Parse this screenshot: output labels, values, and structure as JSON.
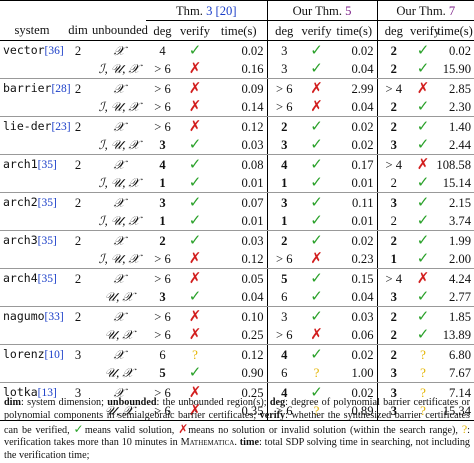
{
  "header": {
    "thm3_label": "Thm. ",
    "thm3_num": "3",
    "thm3_ref": "[20]",
    "our5_label": "Our Thm. ",
    "our5_num": "5",
    "our7_label": "Our Thm. ",
    "our7_num": "7",
    "col_system": "system",
    "col_dim": "dim",
    "col_unbounded": "unbounded",
    "col_deg": "deg",
    "col_verify": "verify",
    "col_time": "time(s)"
  },
  "rows": [
    {
      "sys": "vector",
      "ref": "[36]",
      "dim": "2",
      "unb": "𝒳",
      "a": [
        "4",
        "ok",
        "0.02"
      ],
      "b": [
        "3",
        "ok",
        "0.02"
      ],
      "c": [
        "2",
        "ok",
        "0.02"
      ],
      "bold": [
        false,
        false,
        true
      ]
    },
    {
      "sys": "",
      "ref": "",
      "dim": "",
      "unb": "ℐ, 𝒰, 𝒳",
      "a": [
        "> 6",
        "no",
        "0.16"
      ],
      "b": [
        "3",
        "ok",
        "0.04"
      ],
      "c": [
        "2",
        "ok",
        "15.90"
      ],
      "bold": [
        false,
        false,
        true
      ],
      "end": true
    },
    {
      "sys": "barrier",
      "ref": "[28]",
      "dim": "2",
      "unb": "𝒳",
      "a": [
        "> 6",
        "no",
        "0.09"
      ],
      "b": [
        "> 6",
        "no",
        "2.99"
      ],
      "c": [
        "> 4",
        "no",
        "2.85"
      ],
      "bold": [
        false,
        false,
        false
      ]
    },
    {
      "sys": "",
      "ref": "",
      "dim": "",
      "unb": "ℐ, 𝒰, 𝒳",
      "a": [
        "> 6",
        "no",
        "0.14"
      ],
      "b": [
        "> 6",
        "no",
        "0.04"
      ],
      "c": [
        "2",
        "ok",
        "2.30"
      ],
      "bold": [
        false,
        false,
        true
      ],
      "end": true
    },
    {
      "sys": "lie-der",
      "ref": "[23]",
      "dim": "2",
      "unb": "𝒳",
      "a": [
        "> 6",
        "no",
        "0.12"
      ],
      "b": [
        "2",
        "ok",
        "0.02"
      ],
      "c": [
        "2",
        "ok",
        "1.40"
      ],
      "bold": [
        false,
        true,
        true
      ]
    },
    {
      "sys": "",
      "ref": "",
      "dim": "",
      "unb": "ℐ, 𝒰, 𝒳",
      "a": [
        "3",
        "ok",
        "0.03"
      ],
      "b": [
        "3",
        "ok",
        "0.02"
      ],
      "c": [
        "3",
        "ok",
        "2.44"
      ],
      "bold": [
        true,
        true,
        true
      ],
      "end": true
    },
    {
      "sys": "arch1",
      "ref": "[35]",
      "dim": "2",
      "unb": "𝒳",
      "a": [
        "4",
        "ok",
        "0.08"
      ],
      "b": [
        "4",
        "ok",
        "0.17"
      ],
      "c": [
        "> 4",
        "no",
        "108.58"
      ],
      "bold": [
        true,
        true,
        false
      ]
    },
    {
      "sys": "",
      "ref": "",
      "dim": "",
      "unb": "ℐ, 𝒰, 𝒳",
      "a": [
        "1",
        "ok",
        "0.01"
      ],
      "b": [
        "1",
        "ok",
        "0.01"
      ],
      "c": [
        "2",
        "ok",
        "15.14"
      ],
      "bold": [
        true,
        true,
        false
      ],
      "end": true
    },
    {
      "sys": "arch2",
      "ref": "[35]",
      "dim": "2",
      "unb": "𝒳",
      "a": [
        "3",
        "ok",
        "0.07"
      ],
      "b": [
        "3",
        "ok",
        "0.11"
      ],
      "c": [
        "3",
        "ok",
        "2.15"
      ],
      "bold": [
        true,
        true,
        true
      ]
    },
    {
      "sys": "",
      "ref": "",
      "dim": "",
      "unb": "ℐ, 𝒰, 𝒳",
      "a": [
        "1",
        "ok",
        "0.01"
      ],
      "b": [
        "1",
        "ok",
        "0.01"
      ],
      "c": [
        "2",
        "ok",
        "3.74"
      ],
      "bold": [
        true,
        true,
        false
      ],
      "end": true
    },
    {
      "sys": "arch3",
      "ref": "[35]",
      "dim": "2",
      "unb": "𝒳",
      "a": [
        "2",
        "ok",
        "0.03"
      ],
      "b": [
        "2",
        "ok",
        "0.02"
      ],
      "c": [
        "2",
        "ok",
        "1.99"
      ],
      "bold": [
        true,
        true,
        true
      ]
    },
    {
      "sys": "",
      "ref": "",
      "dim": "",
      "unb": "ℐ, 𝒰, 𝒳",
      "a": [
        "> 6",
        "no",
        "0.12"
      ],
      "b": [
        "> 6",
        "no",
        "0.23"
      ],
      "c": [
        "1",
        "ok",
        "2.00"
      ],
      "bold": [
        false,
        false,
        true
      ],
      "end": true
    },
    {
      "sys": "arch4",
      "ref": "[35]",
      "dim": "2",
      "unb": "𝒳",
      "a": [
        "> 6",
        "no",
        "0.05"
      ],
      "b": [
        "5",
        "ok",
        "0.15"
      ],
      "c": [
        "> 4",
        "no",
        "4.24"
      ],
      "bold": [
        false,
        true,
        false
      ]
    },
    {
      "sys": "",
      "ref": "",
      "dim": "",
      "unb": "𝒰, 𝒳",
      "a": [
        "3",
        "ok",
        "0.04"
      ],
      "b": [
        "6",
        "ok",
        "0.04"
      ],
      "c": [
        "3",
        "ok",
        "2.77"
      ],
      "bold": [
        true,
        false,
        true
      ],
      "end": true
    },
    {
      "sys": "nagumo",
      "ref": "[33]",
      "dim": "2",
      "unb": "𝒳",
      "a": [
        "> 6",
        "no",
        "0.10"
      ],
      "b": [
        "3",
        "ok",
        "0.03"
      ],
      "c": [
        "2",
        "ok",
        "1.85"
      ],
      "bold": [
        false,
        false,
        true
      ]
    },
    {
      "sys": "",
      "ref": "",
      "dim": "",
      "unb": "𝒰, 𝒳",
      "a": [
        "> 6",
        "no",
        "0.25"
      ],
      "b": [
        "> 6",
        "no",
        "0.06"
      ],
      "c": [
        "2",
        "ok",
        "13.89"
      ],
      "bold": [
        false,
        false,
        true
      ],
      "end": true
    },
    {
      "sys": "lorenz",
      "ref": "[10]",
      "dim": "3",
      "unb": "𝒳",
      "a": [
        "6",
        "q",
        "0.12"
      ],
      "b": [
        "4",
        "ok",
        "0.02"
      ],
      "c": [
        "2",
        "q",
        "6.80"
      ],
      "bold": [
        false,
        true,
        true
      ]
    },
    {
      "sys": "",
      "ref": "",
      "dim": "",
      "unb": "𝒰, 𝒳",
      "a": [
        "5",
        "ok",
        "0.90"
      ],
      "b": [
        "6",
        "q",
        "1.00"
      ],
      "c": [
        "3",
        "q",
        "7.67"
      ],
      "bold": [
        true,
        false,
        true
      ],
      "end": true
    },
    {
      "sys": "lotka",
      "ref": "[13]",
      "dim": "3",
      "unb": "𝒳",
      "a": [
        "> 6",
        "no",
        "0.25"
      ],
      "b": [
        "4",
        "ok",
        "0.02"
      ],
      "c": [
        "3",
        "q",
        "7.14"
      ],
      "bold": [
        false,
        true,
        true
      ]
    },
    {
      "sys": "",
      "ref": "",
      "dim": "",
      "unb": "𝒰, 𝒳",
      "a": [
        "> 6",
        "no",
        "0.35"
      ],
      "b": [
        "> 6",
        "q",
        "0.89"
      ],
      "c": [
        "3",
        "q",
        "15.34"
      ],
      "bold": [
        false,
        false,
        true
      ],
      "end": true
    }
  ],
  "notes": {
    "dim_label": "dim",
    "dim_text": ": system dimension; ",
    "unb_label": "unbounded",
    "unb_text": ": the unbounded region(s); ",
    "deg_label": "deg",
    "deg_text": ": degree of polynomial barrier certificates or polynomial components in semialgebraic barrier certificates; ",
    "verify_label": "verify",
    "verify_text1": ": whether the synthesized barrier certificates can be verified, ",
    "verify_text2": "means valid solution, ",
    "verify_text3": "means no solution or invalid solution (within the search range), ",
    "verify_text4": ": verification takes more than 10 minutes in ",
    "mathematica": "Mathematica",
    "period": ".",
    "time_label": "time",
    "time_text": ": total SDP solving time in searching, not including the verification time;"
  },
  "glyphs": {
    "ok": "✓",
    "no": "✗",
    "q": "?"
  },
  "colors": {
    "ok": "#2aa12a",
    "no": "#d21e1e",
    "q": "#e4b400",
    "ref": "#1a3ec8",
    "thm7": "#7b1f88"
  }
}
